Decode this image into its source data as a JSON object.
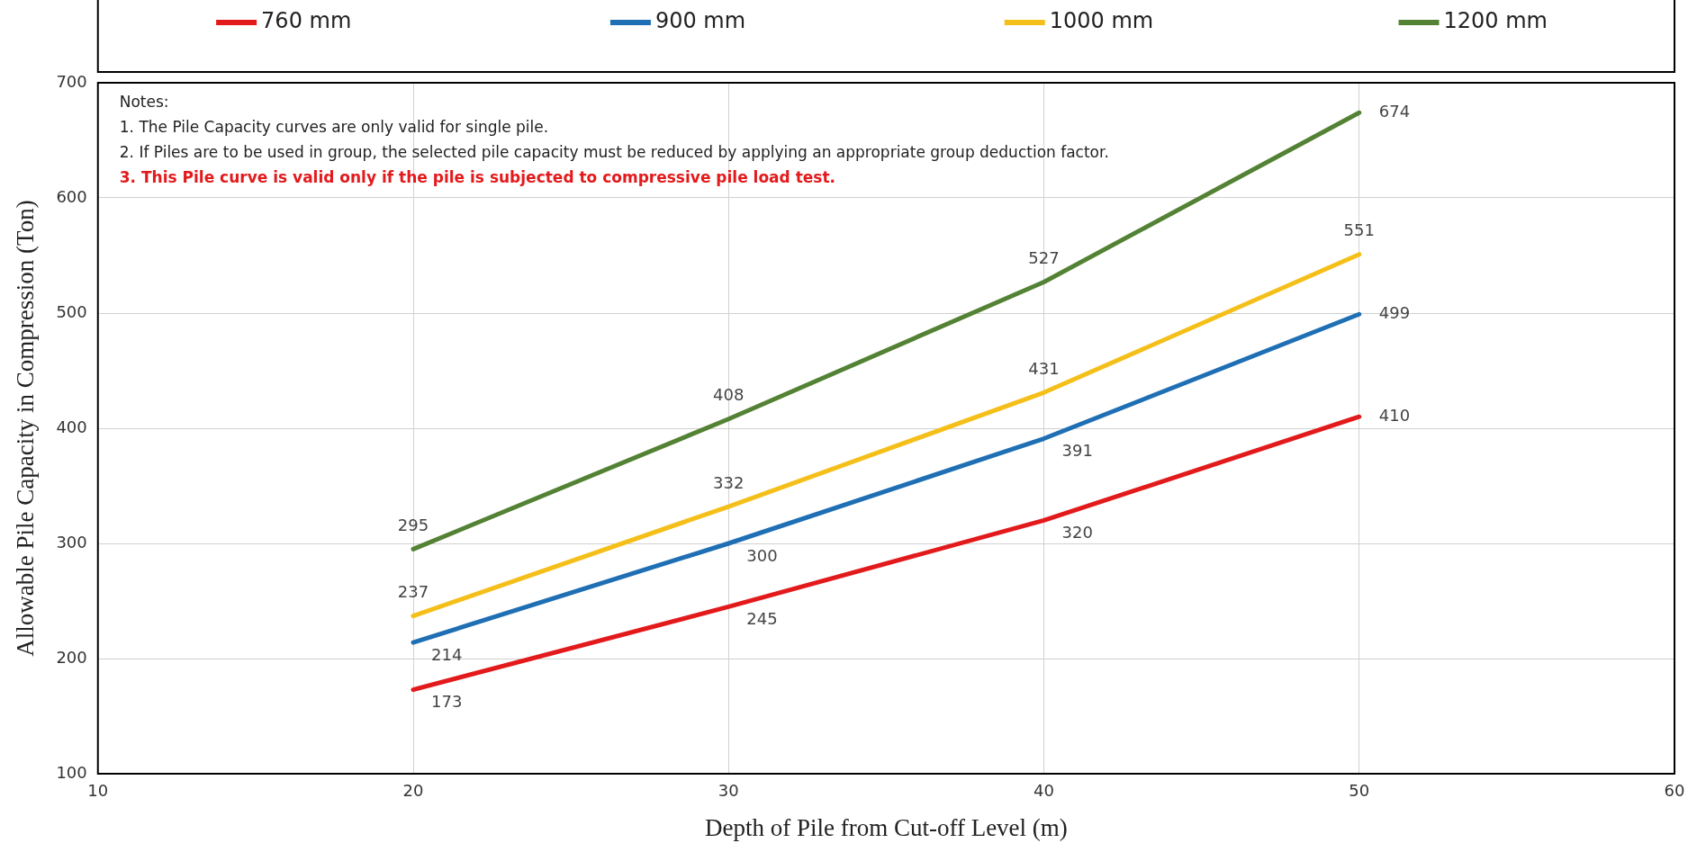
{
  "chart_data": {
    "type": "line",
    "xlabel": "Depth of Pile from Cut-off Level (m)",
    "ylabel": "Allowable Pile Capacity in Compression (Ton)",
    "x": [
      20,
      30,
      40,
      50
    ],
    "series": [
      {
        "name": "760 mm",
        "color": "#e31a1c",
        "values": [
          173,
          245,
          320,
          410
        ]
      },
      {
        "name": "900 mm",
        "color": "#1f6fb4",
        "values": [
          214,
          300,
          391,
          499
        ]
      },
      {
        "name": "1000 mm",
        "color": "#f5bf1a",
        "values": [
          237,
          332,
          431,
          551
        ]
      },
      {
        "name": "1200 mm",
        "color": "#548235",
        "values": [
          295,
          408,
          527,
          674
        ]
      }
    ],
    "xlim": [
      10,
      60
    ],
    "xticks": [
      10,
      20,
      30,
      40,
      50,
      60
    ],
    "ylim": [
      100,
      700
    ],
    "yticks": [
      100,
      200,
      300,
      400,
      500,
      600,
      700
    ],
    "grid": true,
    "legend": "top",
    "marker": "none",
    "line_style": "solid",
    "data_labels": true,
    "annotations": [
      "Notes:",
      "1. The Pile Capacity curves are only valid for single pile.",
      "2. If Piles are to be used in group, the selected pile capacity must be reduced by applying an appropriate group deduction factor.",
      "3. This Pile curve is valid only if the pile is subjected to compressive pile load test."
    ]
  }
}
